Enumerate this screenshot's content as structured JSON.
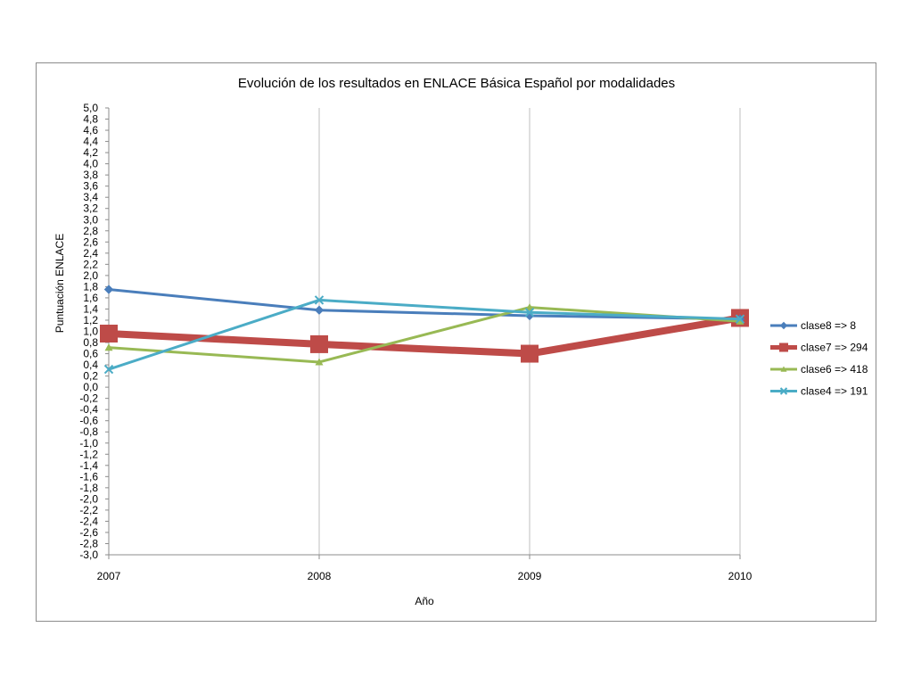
{
  "chart_data": {
    "type": "line",
    "title": "Evolución de los resultados en ENLACE Básica Español por modalidades",
    "xlabel": "Año",
    "ylabel": "Puntuación ENLACE",
    "categories": [
      "2007",
      "2008",
      "2009",
      "2010"
    ],
    "ylim": [
      -3.0,
      5.0
    ],
    "ytick_step": 0.2,
    "grid": "vertical",
    "legend_position": "right",
    "series": [
      {
        "name": "clase8 => 8",
        "values": [
          1.75,
          1.38,
          1.28,
          1.22
        ],
        "color": "#4a7ebb",
        "marker": "diamond",
        "stroke_width": 3
      },
      {
        "name": "clase7 => 294",
        "values": [
          0.96,
          0.77,
          0.6,
          1.24
        ],
        "color": "#be4b48",
        "marker": "square",
        "stroke_width": 8
      },
      {
        "name": "clase6 => 418",
        "values": [
          0.71,
          0.45,
          1.43,
          1.18
        ],
        "color": "#98b954",
        "marker": "triangle",
        "stroke_width": 3
      },
      {
        "name": "clase4 => 191",
        "values": [
          0.32,
          1.56,
          1.34,
          1.22
        ],
        "color": "#4bacc6",
        "marker": "x",
        "stroke_width": 3
      }
    ]
  }
}
